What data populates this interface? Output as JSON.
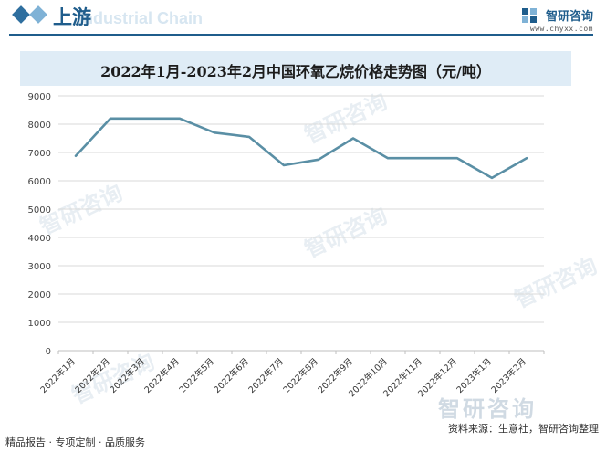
{
  "header": {
    "section_title": "上游",
    "ghost_text": "Industrial Chain",
    "brand_name": "智研咨询",
    "brand_url": "www.chyxx.com"
  },
  "colors": {
    "accent": "#1f5d8c",
    "line": "#5a8fa5",
    "title_band": "#dfecf6"
  },
  "chart_data": {
    "type": "line",
    "title": "2022年1月-2023年2月中国环氧乙烷价格走势图（元/吨）",
    "categories": [
      "2022年1月",
      "2022年2月",
      "2022年3月",
      "2022年4月",
      "2022年5月",
      "2022年6月",
      "2022年7月",
      "2022年8月",
      "2022年9月",
      "2022年10月",
      "2022年11月",
      "2022年12月",
      "2023年1月",
      "2023年2月"
    ],
    "series": [
      {
        "values": [
          6880,
          8200,
          8200,
          8200,
          7700,
          7550,
          6550,
          6750,
          7500,
          6800,
          6800,
          6800,
          6100,
          6800
        ]
      }
    ],
    "ylim": [
      0,
      9000
    ],
    "yticks": [
      0,
      1000,
      2000,
      3000,
      4000,
      5000,
      6000,
      7000,
      8000,
      9000
    ],
    "grid": true,
    "legend": "none"
  },
  "footer": {
    "left": "精品报告 · 专项定制 · 品质服务",
    "right": "资料来源：生意社，智研咨询整理"
  },
  "watermark": {
    "text": "智研咨询",
    "icon": "zhiyan-logo-icon"
  }
}
